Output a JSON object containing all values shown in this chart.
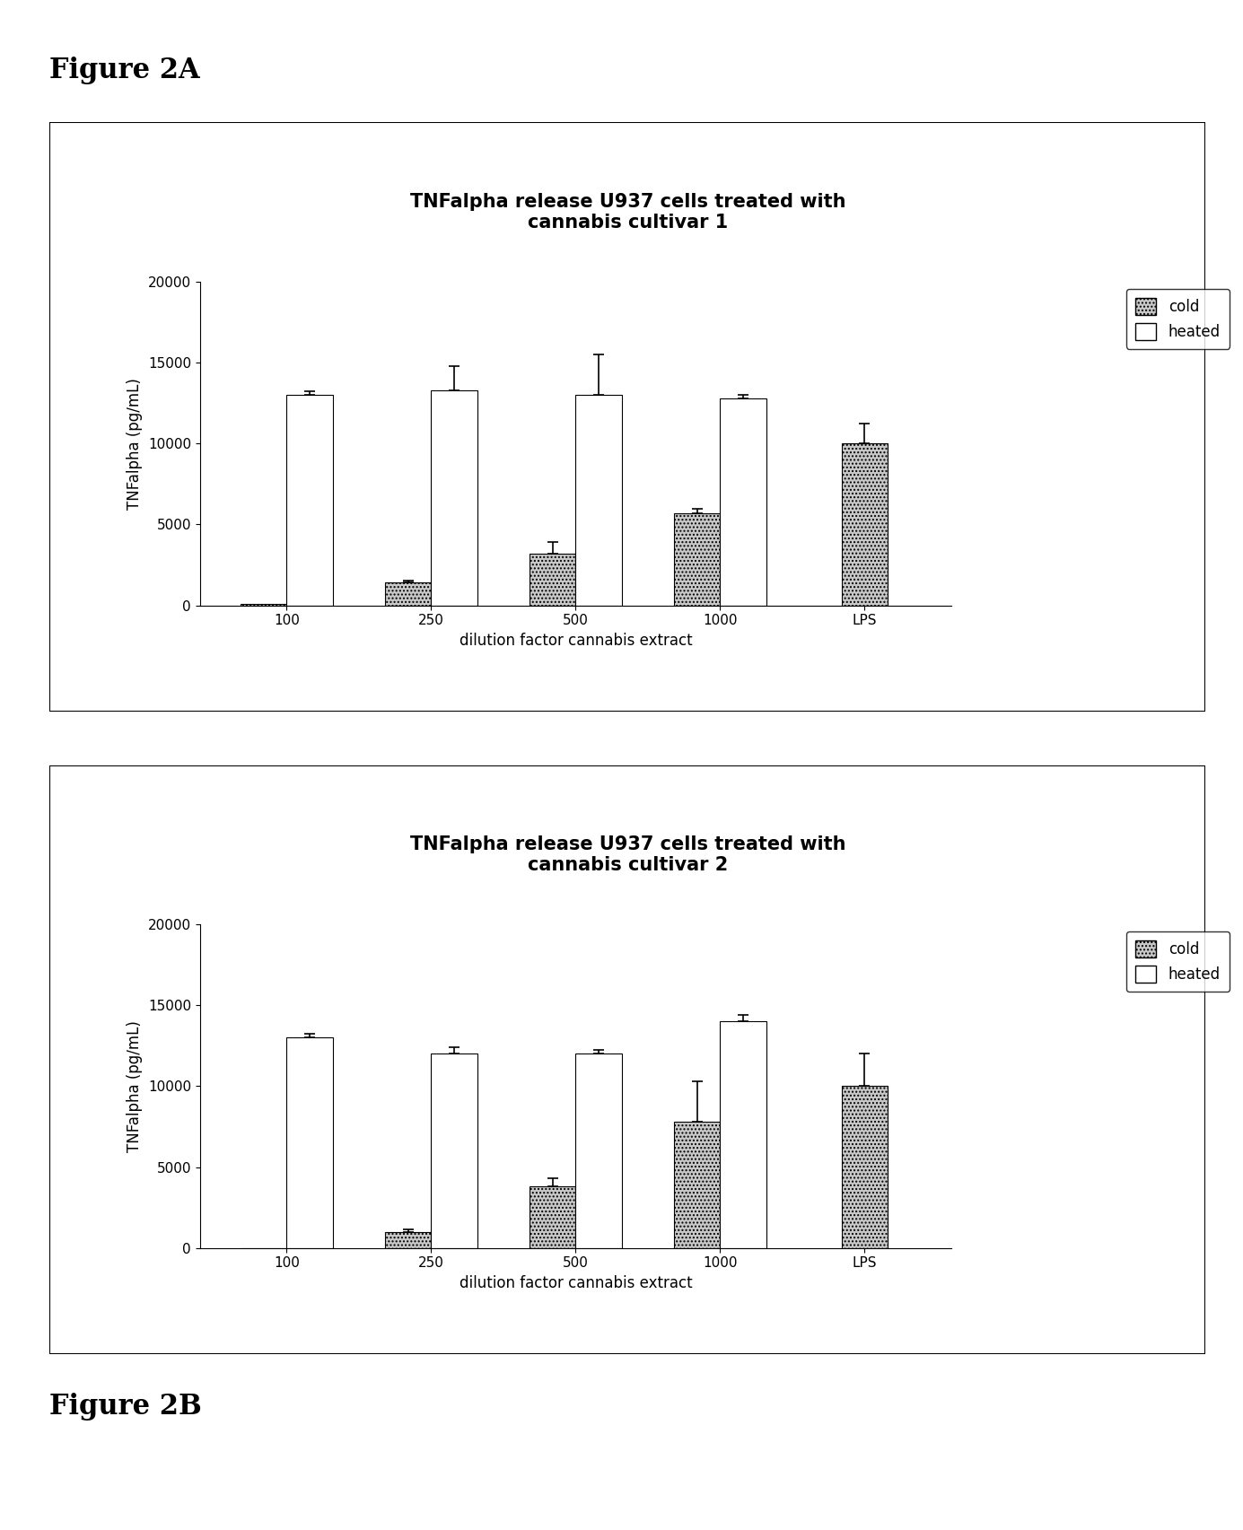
{
  "figure_label_top": "Figure 2A",
  "figure_label_bottom": "Figure 2B",
  "chart1": {
    "title": "TNFalpha release U937 cells treated with\ncannabis cultivar 1",
    "xlabel": "dilution factor cannabis extract",
    "ylabel": "TNFalpha (pg/mL)",
    "categories": [
      "100",
      "250",
      "500",
      "1000",
      "LPS"
    ],
    "cold_values": [
      100,
      1400,
      3200,
      5700,
      10000
    ],
    "heated_values": [
      13000,
      13300,
      13000,
      12800,
      0
    ],
    "cold_errors": [
      50,
      150,
      700,
      250,
      1200
    ],
    "heated_errors": [
      200,
      1500,
      2500,
      200,
      0
    ],
    "ylim": [
      0,
      20000
    ],
    "yticks": [
      0,
      5000,
      10000,
      15000,
      20000
    ]
  },
  "chart2": {
    "title": "TNFalpha release U937 cells treated with\ncannabis cultivar 2",
    "xlabel": "dilution factor cannabis extract",
    "ylabel": "TNFalpha (pg/mL)",
    "categories": [
      "100",
      "250",
      "500",
      "1000",
      "LPS"
    ],
    "cold_values": [
      0,
      1000,
      3800,
      7800,
      10000
    ],
    "heated_values": [
      13000,
      12000,
      12000,
      14000,
      0
    ],
    "cold_errors": [
      30,
      150,
      500,
      2500,
      2000
    ],
    "heated_errors": [
      200,
      400,
      250,
      400,
      0
    ],
    "ylim": [
      0,
      20000
    ],
    "yticks": [
      0,
      5000,
      10000,
      15000,
      20000
    ]
  },
  "cold_color": "#c8c8c8",
  "heated_color": "#ffffff",
  "cold_hatch": "....",
  "heated_hatch": "",
  "bar_edgecolor": "#000000",
  "bar_width": 0.32,
  "title_fontsize": 15,
  "axis_label_fontsize": 12,
  "tick_fontsize": 11,
  "legend_fontsize": 12,
  "background_color": "#ffffff",
  "fig_label_fontsize": 22
}
